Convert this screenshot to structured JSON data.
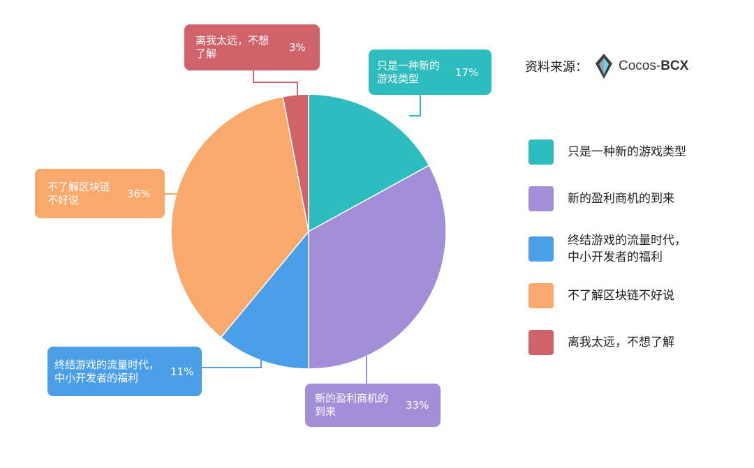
{
  "chart_data": {
    "type": "pie",
    "slices": [
      {
        "label": "只是一种新的游戏类型",
        "callout_label": "只是一种新的\n游戏类型",
        "value": 17,
        "value_label": "17%",
        "color": "#2ebdbf"
      },
      {
        "label": "新的盈利商机的到来",
        "callout_label": "新的盈利商机的\n到来",
        "value": 33,
        "value_label": "33%",
        "color": "#a38fd8"
      },
      {
        "label": "终结游戏的流量时代，\n中小开发者的福利",
        "callout_label": "终结游戏的流量时代，\n中小开发者的福利",
        "value": 11,
        "value_label": "11%",
        "color": "#4a9fe8"
      },
      {
        "label": "不了解区块链不好说",
        "callout_label": "不了解区块链\n不好说",
        "value": 36,
        "value_label": "36%",
        "color": "#f8a96b"
      },
      {
        "label": "离我太远，不想了解",
        "callout_label": "离我太远，不想\n了解",
        "value": 3,
        "value_label": "3%",
        "color": "#d0626a"
      }
    ]
  },
  "source": {
    "label": "资料来源：",
    "brand_prefix": "Cocos-",
    "brand_suffix": "BCX",
    "logo_icon": "cocos-bcx-logo-icon"
  }
}
